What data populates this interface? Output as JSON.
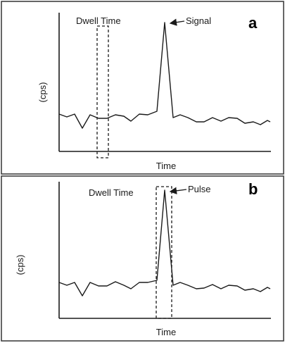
{
  "panels": [
    {
      "id": "a",
      "label": "a",
      "dwell_time_label": "Dwell Time",
      "peak_label": "Signal",
      "y_label": "(cps)",
      "x_label": "Time"
    },
    {
      "id": "b",
      "label": "b",
      "dwell_time_label": "Dwell Time",
      "peak_label": "Pulse",
      "y_label": "(cps)",
      "x_label": "Time"
    }
  ]
}
